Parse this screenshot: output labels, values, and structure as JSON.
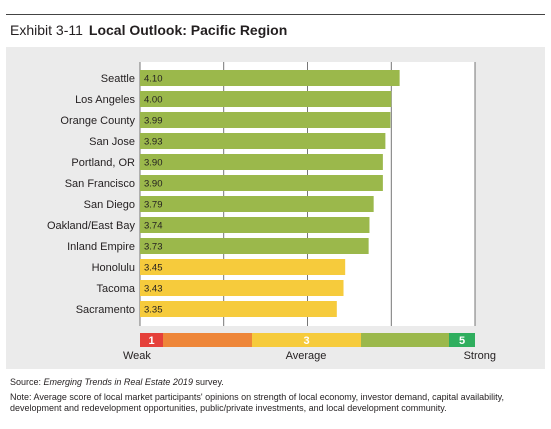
{
  "header": {
    "exhibit": "Exhibit 3-11",
    "title": "Local Outlook: Pacific Region"
  },
  "chart_data": {
    "type": "bar",
    "orientation": "horizontal",
    "title": "Local Outlook: Pacific Region",
    "categories": [
      "Seattle",
      "Los Angeles",
      "Orange County",
      "San Jose",
      "Portland, OR",
      "San Francisco",
      "San Diego",
      "Oakland/East Bay",
      "Inland Empire",
      "Honolulu",
      "Tacoma",
      "Sacramento"
    ],
    "values": [
      4.1,
      4.0,
      3.99,
      3.93,
      3.9,
      3.9,
      3.79,
      3.74,
      3.73,
      3.45,
      3.43,
      3.35
    ],
    "value_labels": [
      "4.10",
      "4.00",
      "3.99",
      "3.93",
      "3.90",
      "3.90",
      "3.79",
      "3.74",
      "3.73",
      "3.45",
      "3.43",
      "3.35"
    ],
    "xlim": [
      1,
      5
    ],
    "grid": true,
    "colors": {
      "above_3.5": "#9bb84b",
      "below_3.5": "#f6cb3c"
    },
    "scale": {
      "segments": [
        {
          "color": "#e5403a",
          "label": "1"
        },
        {
          "color": "#ee8639",
          "label": ""
        },
        {
          "color": "#f6cb3c",
          "label": "3"
        },
        {
          "color": "#9bb84b",
          "label": ""
        },
        {
          "color": "#2fae5e",
          "label": "5"
        }
      ],
      "labels": {
        "left": "Weak",
        "middle": "Average",
        "right": "Strong"
      }
    }
  },
  "footer": {
    "source_prefix": "Source: ",
    "source_title": "Emerging Trends in Real Estate 2019",
    "source_suffix": " survey.",
    "note": "Note: Average score of local market participants' opinions on strength of local economy, investor demand, capital availability, development and redevelopment opportunities, public/private investments, and local development community."
  }
}
